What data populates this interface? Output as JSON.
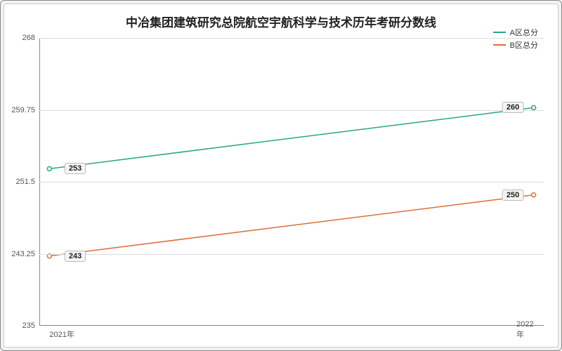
{
  "chart": {
    "type": "line",
    "title": "中冶集团建筑研究总院航空宇航科学与技术历年考研分数线",
    "title_fontsize": 17,
    "background_outer": "#f2f2f0",
    "background_inner": "#ffffff",
    "border_color": "#888888",
    "grid_color": "#dddddd",
    "axis_color": "#888888",
    "label_text_color": "#555555",
    "title_color": "#222222",
    "point_label_bg": "#f5f5f3",
    "point_label_border": "#bbbbbb",
    "x_categories": [
      "2021年",
      "2022年"
    ],
    "ylim": [
      235,
      268
    ],
    "yticks": [
      235,
      243.25,
      251.5,
      259.75,
      268
    ],
    "ytick_labels": [
      "235",
      "243.25",
      "251.5",
      "259.75",
      "268"
    ],
    "line_width": 1.5,
    "marker_radius": 3,
    "marker_fill": "#ffffff",
    "axis_fontsize": 11,
    "series": [
      {
        "name": "A区总分",
        "color": "#2aa58a",
        "values": [
          253,
          260
        ],
        "labels": [
          "253",
          "260"
        ]
      },
      {
        "name": "B区总分",
        "color": "#e06c3a",
        "values": [
          243,
          250
        ],
        "labels": [
          "243",
          "250"
        ]
      }
    ],
    "legend": {
      "position": "top-right",
      "fontsize": 11
    }
  }
}
